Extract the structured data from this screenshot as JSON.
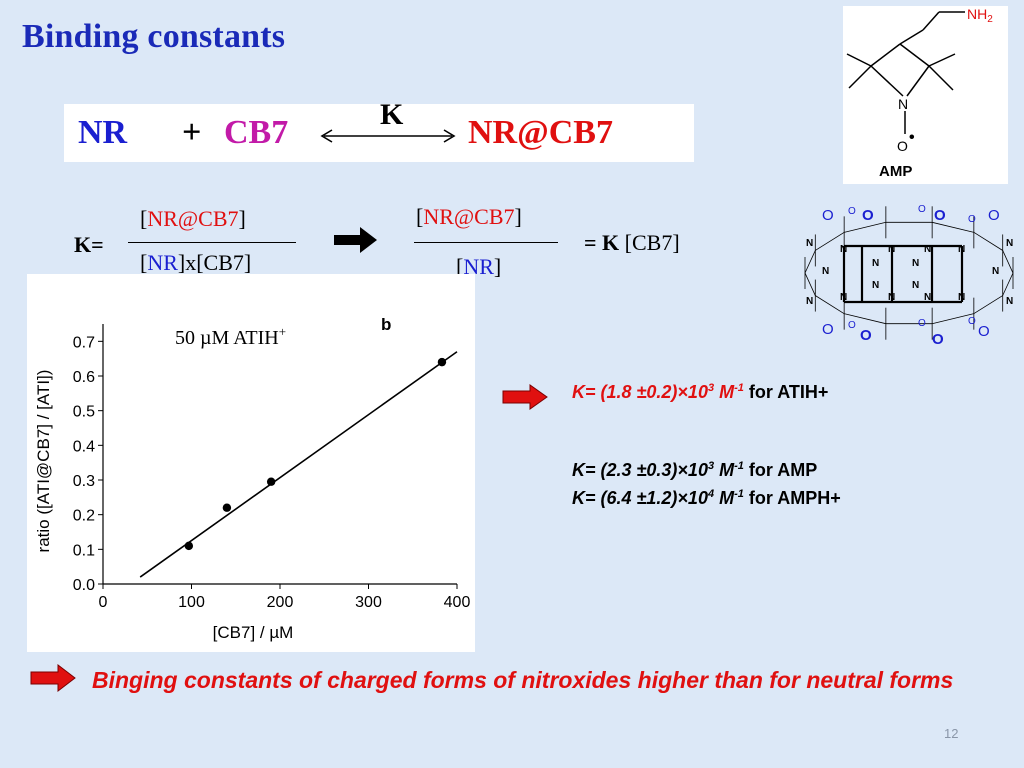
{
  "slide": {
    "title": "Binding constants",
    "page_number": "12"
  },
  "equation": {
    "reactant1": "NR",
    "plus": "+",
    "reactant2": "CB7",
    "constant": "K",
    "product": "NR@CB7"
  },
  "fraction": {
    "k_label": "K=",
    "num1": "NR@CB7",
    "den1_a": "NR",
    "den1_b": "x[CB7]",
    "num2": "NR@CB7",
    "den2": "NR",
    "eq_k": "= K",
    "eq_cb7": "[CB7]"
  },
  "amp": {
    "label": "AMP",
    "nh2": "NH",
    "nh2_sub": "2",
    "n": "N",
    "o": "O",
    "radical": "•"
  },
  "cb7_atoms": {
    "o": "O",
    "n": "N"
  },
  "results": [
    {
      "value": "K= (1.8 ±0.2)×10",
      "exp": "3",
      "unit": " M",
      "unit_exp": "-1",
      "target": "for ATIH+",
      "color": "#e01010"
    },
    {
      "value": "K= (2.3 ±0.3)×10",
      "exp": "3",
      "unit": " M",
      "unit_exp": "-1",
      "target": "for AMP",
      "color": "#000000"
    },
    {
      "value": "K= (6.4 ±1.2)×10",
      "exp": "4",
      "unit": " M",
      "unit_exp": "-1",
      "target": "for AMPH+",
      "color": "#000000"
    }
  ],
  "conclusion": "Binging constants of charged forms of nitroxides higher than for neutral forms",
  "chart_data": {
    "type": "scatter",
    "annotation": "50 µM ATIH",
    "annotation_sup": "+",
    "panel_label": "b",
    "xlabel": "[CB7] / µM",
    "ylabel": "ratio ([ATI@CB7] / [ATI])",
    "xlim": [
      0,
      400
    ],
    "ylim": [
      0,
      0.75
    ],
    "xticks": [
      "0",
      "100",
      "200",
      "300",
      "400"
    ],
    "yticks": [
      "0.0",
      "0.1",
      "0.2",
      "0.3",
      "0.4",
      "0.5",
      "0.6",
      "0.7"
    ],
    "points": [
      {
        "x": 97,
        "y": 0.11
      },
      {
        "x": 140,
        "y": 0.22
      },
      {
        "x": 190,
        "y": 0.295
      },
      {
        "x": 383,
        "y": 0.64
      }
    ],
    "fit_line": {
      "x": [
        42,
        400
      ],
      "y": [
        0.02,
        0.67
      ]
    },
    "grid": false
  }
}
